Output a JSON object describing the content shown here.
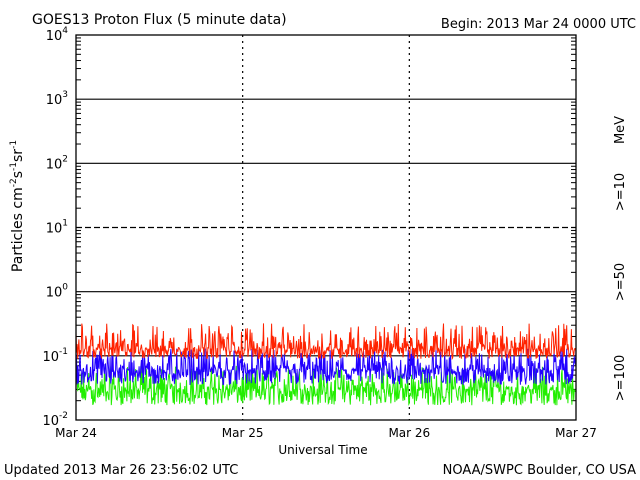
{
  "header": {
    "title": "GOES13 Proton Flux (5 minute data)",
    "begin": "Begin: 2013 Mar 24 0000 UTC"
  },
  "footer": {
    "updated": "Updated 2013 Mar 26 23:56:02 UTC",
    "credit": "NOAA/SWPC Boulder, CO USA"
  },
  "chart_data": {
    "type": "line",
    "title": "GOES13 Proton Flux (5 minute data)",
    "xlabel": "Universal Time",
    "ylabel": "Particles cm-2 s-1 sr-1",
    "ylabel_parts": {
      "base": "Particles cm",
      "e1": "-2",
      "mid1": "s",
      "e2": "-1",
      "mid2": "sr",
      "e3": "-1"
    },
    "y_scale": "log",
    "ylim": [
      0.01,
      10000
    ],
    "y_ticks": [
      {
        "value": 0.01,
        "base": "10",
        "exp": "-2"
      },
      {
        "value": 0.1,
        "base": "10",
        "exp": "-1"
      },
      {
        "value": 1,
        "base": "10",
        "exp": "0"
      },
      {
        "value": 10,
        "base": "10",
        "exp": "1"
      },
      {
        "value": 100,
        "base": "10",
        "exp": "2"
      },
      {
        "value": 1000,
        "base": "10",
        "exp": "3"
      },
      {
        "value": 10000,
        "base": "10",
        "exp": "4"
      }
    ],
    "xlim": [
      "2013-03-24",
      "2013-03-27"
    ],
    "x_ticks": [
      {
        "date": "2013-03-24",
        "label": "Mar 24"
      },
      {
        "date": "2013-03-25",
        "label": "Mar 25"
      },
      {
        "date": "2013-03-26",
        "label": "Mar 26"
      },
      {
        "date": "2013-03-27",
        "label": "Mar 27"
      }
    ],
    "threshold_lines": [
      {
        "value": 10,
        "style": "dashed"
      },
      {
        "value": 100,
        "style": "solid"
      }
    ],
    "unit_label": "MeV",
    "series": [
      {
        "name": ">=10",
        "color": "#ff2200",
        "typical": 0.13,
        "min": 0.09,
        "max": 0.32
      },
      {
        "name": ">=50",
        "color": "#2200ff",
        "typical": 0.06,
        "min": 0.035,
        "max": 0.13
      },
      {
        "name": ">=100",
        "color": "#22ee00",
        "typical": 0.03,
        "min": 0.017,
        "max": 0.07
      }
    ]
  }
}
